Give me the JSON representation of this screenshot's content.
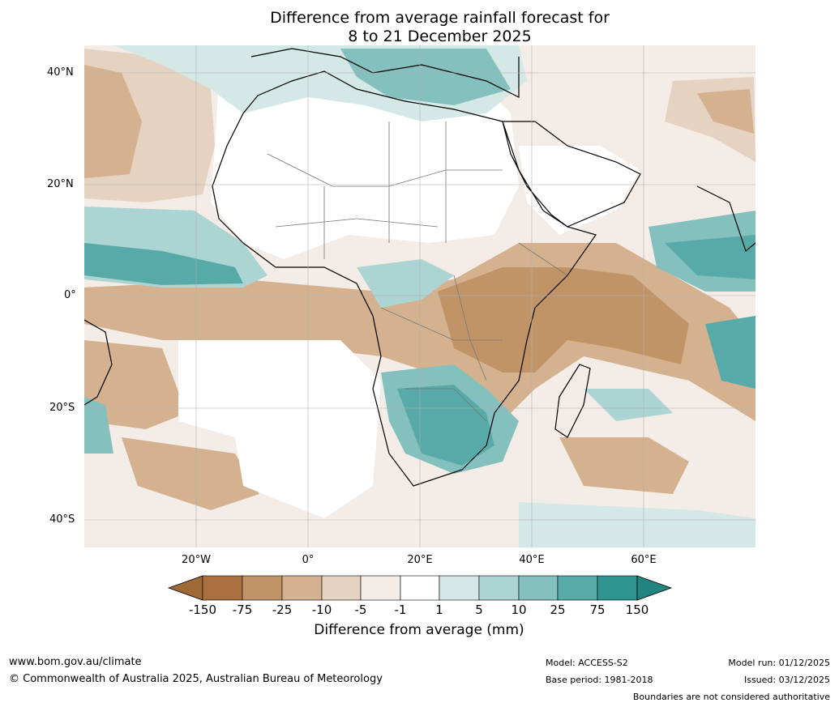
{
  "title": {
    "line1": "Difference from average rainfall forecast for",
    "line2": "8 to 21 December 2025"
  },
  "map": {
    "lat_labels": [
      "40°N",
      "20°N",
      "0°",
      "20°S",
      "40°S"
    ],
    "lon_labels": [
      "20°W",
      "0°",
      "20°E",
      "40°E",
      "60°E"
    ],
    "colors": {
      "d150": "#a06a38",
      "d75": "#a8703e",
      "d25": "#c09466",
      "d10": "#d4b290",
      "d5": "#e6d2c0",
      "d1": "#f4ece6",
      "zero": "#ffffff",
      "w1": "#d4e8e6",
      "w5": "#abd4d2",
      "w10": "#84c0be",
      "w25": "#58aaa8",
      "w75": "#2f9490",
      "w150": "#22847f"
    }
  },
  "colorbar": {
    "ticks": [
      "-150",
      "-75",
      "-25",
      "-10",
      "-5",
      "-1",
      "1",
      "5",
      "10",
      "25",
      "75",
      "150"
    ],
    "title": "Difference from average (mm)"
  },
  "footer": {
    "url": "www.bom.gov.au/climate",
    "copyright": "© Commonwealth of Australia 2025, Australian Bureau of Meteorology",
    "model": "Model: ACCESS-S2",
    "base_period": "Base period: 1981-2018",
    "model_run": "Model run: 01/12/2025",
    "issued": "Issued: 03/12/2025",
    "disclaimer": "Boundaries are not considered authoritative"
  }
}
